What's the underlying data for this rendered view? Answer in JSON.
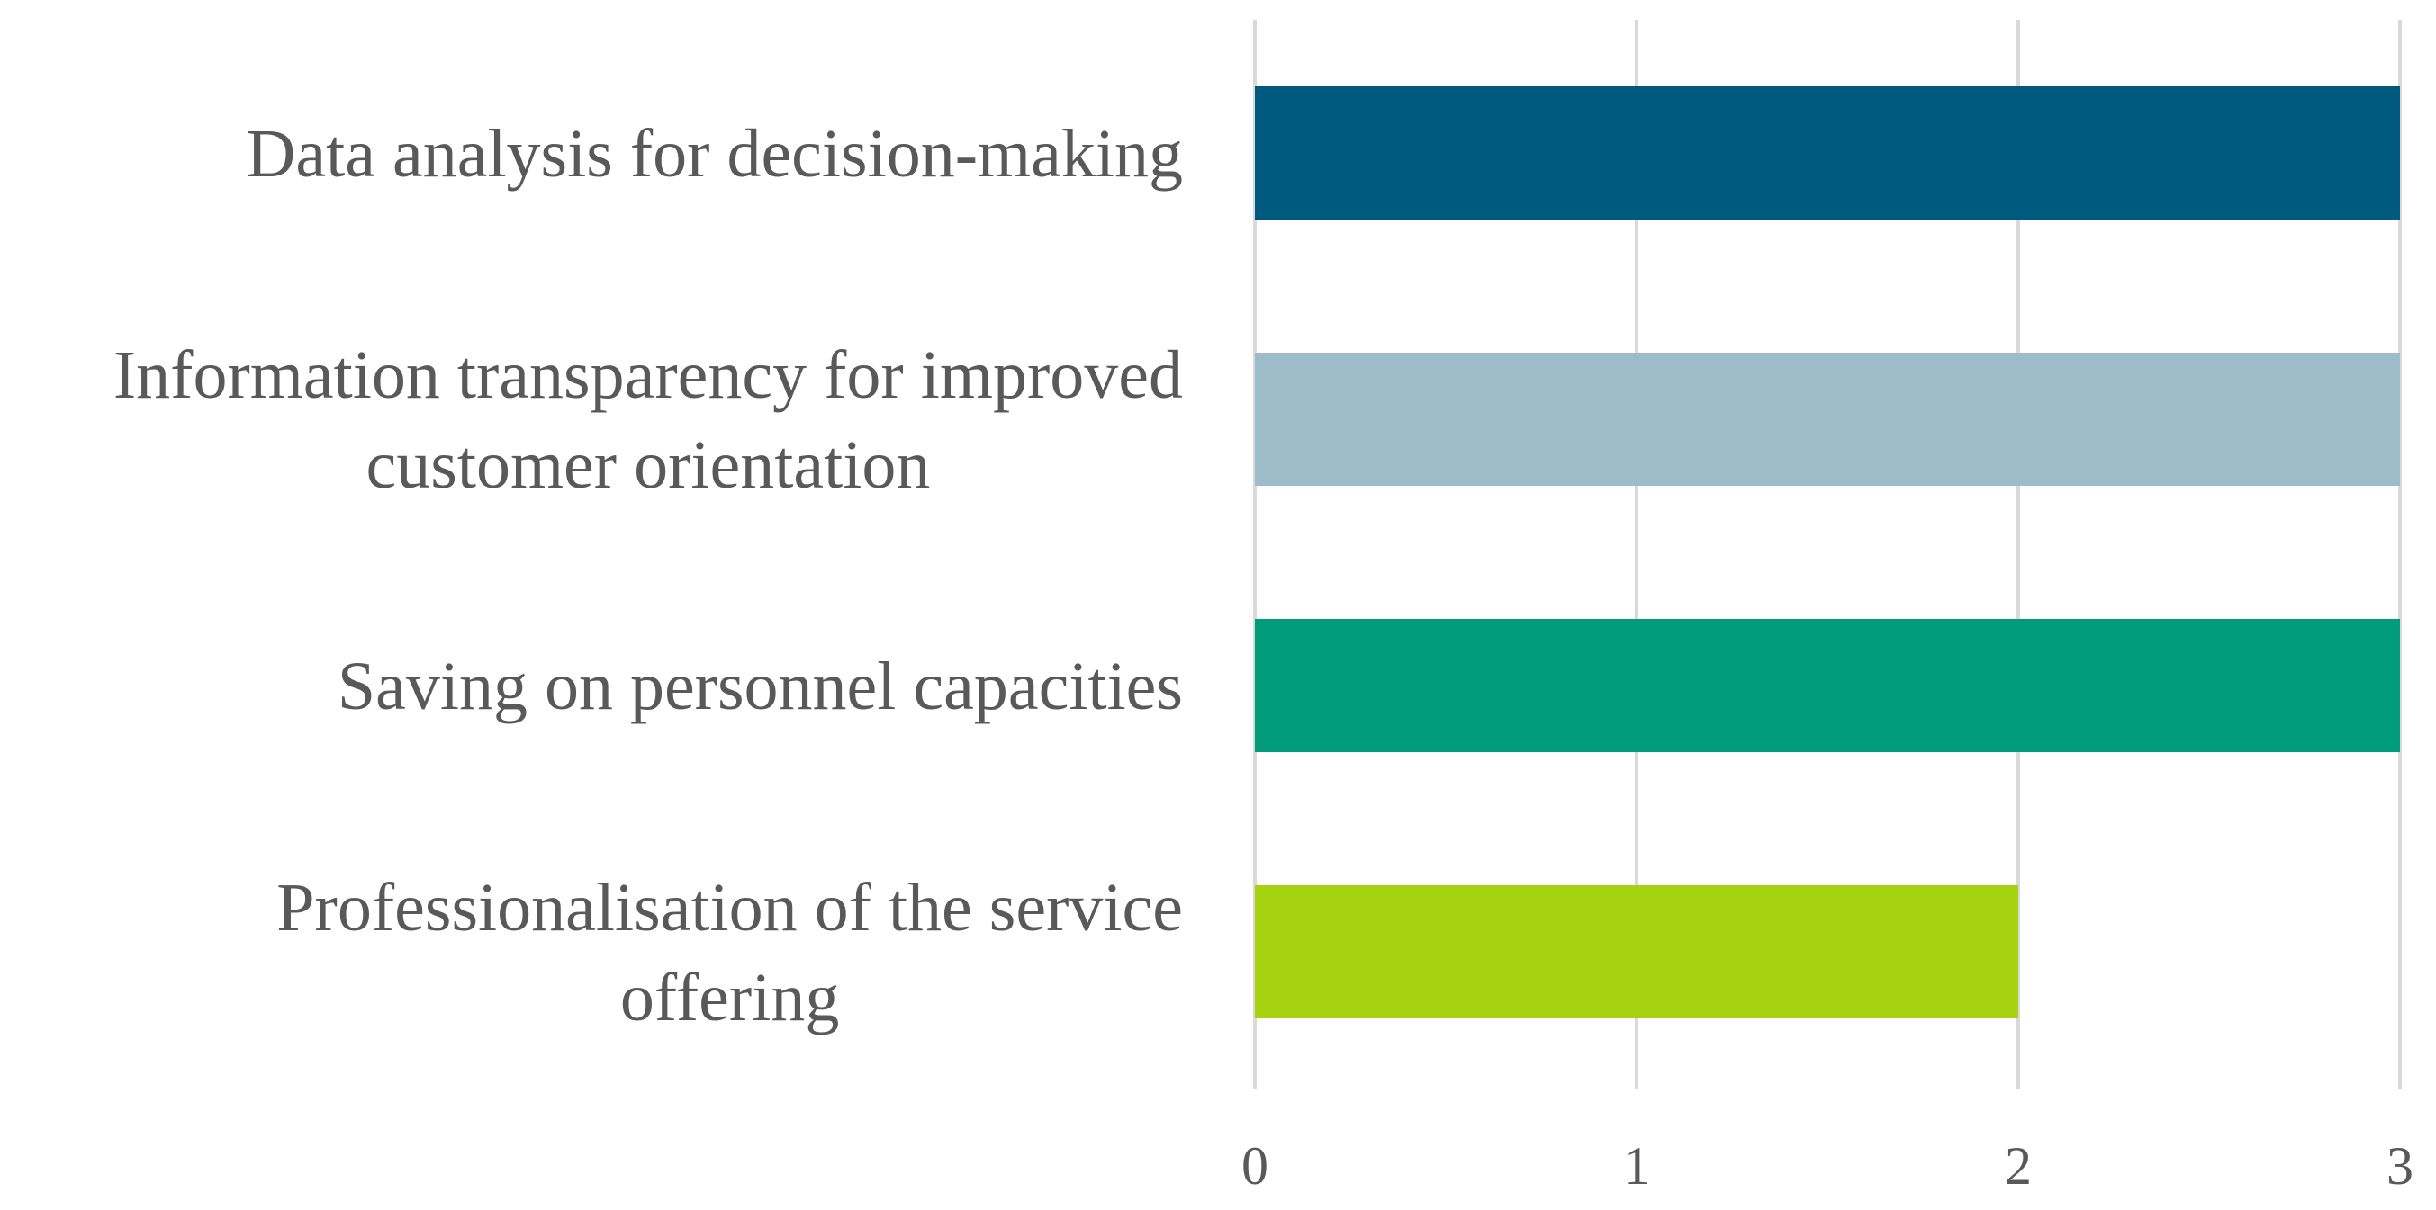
{
  "chart_data": {
    "type": "bar",
    "orientation": "horizontal",
    "title": "",
    "xlabel": "",
    "ylabel": "",
    "xlim": [
      0,
      3
    ],
    "grid": true,
    "legend": "none",
    "categories": [
      "Data analysis for decision-making",
      "Information transparency for improved customer orientation",
      "Saving on personnel capacities",
      "Professionalisation of the service offering"
    ],
    "category_lines": [
      [
        "Data analysis for decision-making"
      ],
      [
        "Information transparency for improved",
        "customer orientation"
      ],
      [
        "Saving on personnel capacities"
      ],
      [
        "Professionalisation of the service",
        "offering"
      ]
    ],
    "values": [
      3,
      3,
      3,
      2
    ],
    "colors": [
      "#005a80",
      "#9dbcca",
      "#009b7a",
      "#a5d30f"
    ],
    "ticks": [
      "0",
      "1",
      "2",
      "3"
    ]
  }
}
